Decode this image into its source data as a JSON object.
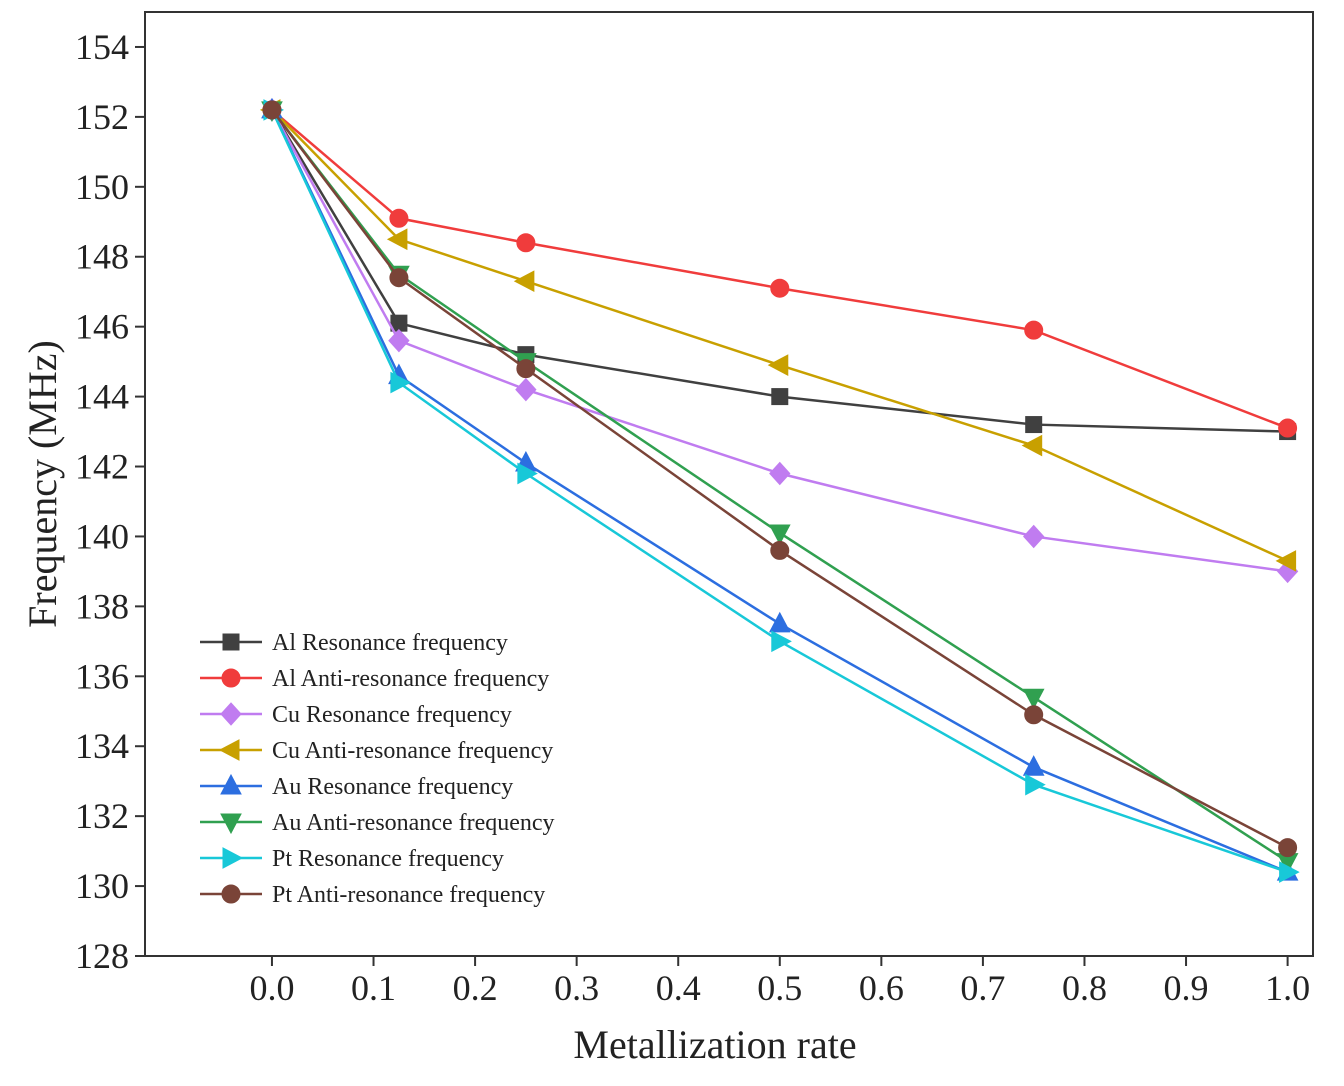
{
  "chart_data": {
    "type": "line",
    "title": "",
    "xlabel": "Metallization rate",
    "ylabel": "Frequency (MHz)",
    "xlim": [
      -0.125,
      1.025
    ],
    "ylim": [
      128,
      155
    ],
    "x_ticks": [
      0.0,
      0.1,
      0.2,
      0.3,
      0.4,
      0.5,
      0.6,
      0.7,
      0.8,
      0.9,
      1.0
    ],
    "x_tick_labels": [
      "0.0",
      "0.1",
      "0.2",
      "0.3",
      "0.4",
      "0.5",
      "0.6",
      "0.7",
      "0.8",
      "0.9",
      "1.0"
    ],
    "y_ticks": [
      128,
      130,
      132,
      134,
      136,
      138,
      140,
      142,
      144,
      146,
      148,
      150,
      152,
      154
    ],
    "y_tick_labels": [
      "128",
      "130",
      "132",
      "134",
      "136",
      "138",
      "140",
      "142",
      "144",
      "146",
      "148",
      "150",
      "152",
      "154"
    ],
    "grid": false,
    "legend_position": "bottom-left",
    "x": [
      0.0,
      0.125,
      0.25,
      0.5,
      0.75,
      1.0
    ],
    "series": [
      {
        "name": "Al Resonance frequency",
        "color": "#404040",
        "marker": "square",
        "values": [
          152.2,
          146.1,
          145.2,
          144.0,
          143.2,
          143.0
        ]
      },
      {
        "name": "Al Anti-resonance frequency",
        "color": "#f03c3c",
        "marker": "circle",
        "values": [
          152.2,
          149.1,
          148.4,
          147.1,
          145.9,
          143.1
        ]
      },
      {
        "name": "Cu Resonance frequency",
        "color": "#c07cf0",
        "marker": "diamond",
        "values": [
          152.2,
          145.6,
          144.2,
          141.8,
          140.0,
          139.0
        ]
      },
      {
        "name": "Cu Anti-resonance frequency",
        "color": "#c8a000",
        "marker": "triangle-left",
        "values": [
          152.2,
          148.5,
          147.3,
          144.9,
          142.6,
          139.3
        ]
      },
      {
        "name": "Au Resonance frequency",
        "color": "#2c6ee0",
        "marker": "triangle-up",
        "values": [
          152.2,
          144.6,
          142.1,
          137.5,
          133.4,
          130.4
        ]
      },
      {
        "name": "Au Anti-resonance frequency",
        "color": "#30a050",
        "marker": "triangle-down",
        "values": [
          152.2,
          147.5,
          145.0,
          140.1,
          135.4,
          130.7
        ]
      },
      {
        "name": "Pt Resonance frequency",
        "color": "#18c8d8",
        "marker": "triangle-right",
        "values": [
          152.2,
          144.4,
          141.8,
          137.0,
          132.9,
          130.4
        ]
      },
      {
        "name": "Pt Anti-resonance frequency",
        "color": "#7a4438",
        "marker": "circle",
        "values": [
          152.2,
          147.4,
          144.8,
          139.6,
          134.9,
          131.1
        ]
      }
    ]
  }
}
